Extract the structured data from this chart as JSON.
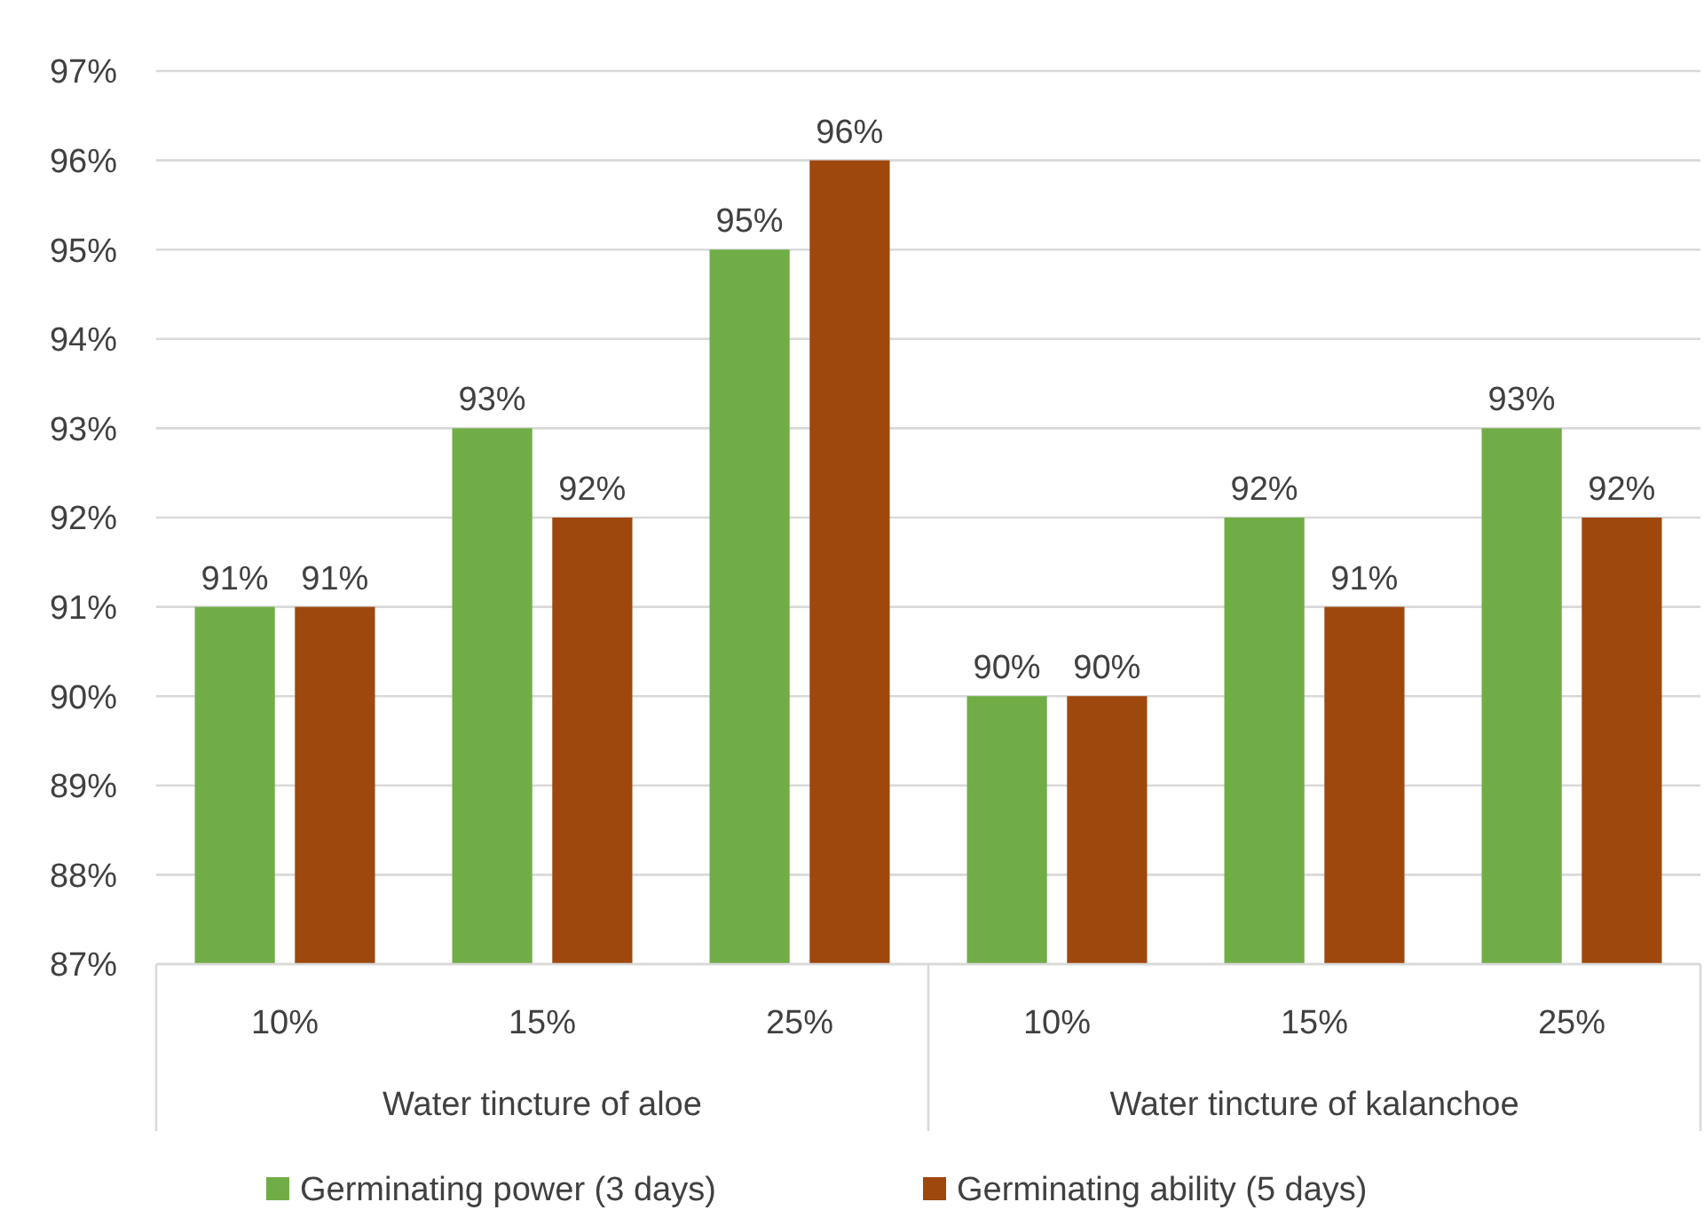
{
  "chart_data": {
    "type": "bar",
    "categories": [
      "10%",
      "15%",
      "25%",
      "10%",
      "15%",
      "25%"
    ],
    "annotations": [
      "Water tincture of aloe",
      "Water tincture of kalanchoe"
    ],
    "series": [
      {
        "name": "Germinating power (3 days)",
        "color": "#70ad47",
        "values": [
          91,
          93,
          95,
          90,
          92,
          93
        ],
        "value_labels": [
          "91%",
          "93%",
          "95%",
          "90%",
          "92%",
          "93%"
        ]
      },
      {
        "name": "Germinating ability (5 days)",
        "color": "#9e480e",
        "values": [
          91,
          92,
          96,
          90,
          91,
          92
        ],
        "value_labels": [
          "91%",
          "92%",
          "96%",
          "90%",
          "91%",
          "92%"
        ]
      }
    ],
    "ylim": [
      87,
      97
    ],
    "yticks": [
      {
        "value": 87,
        "label": "87%"
      },
      {
        "value": 88,
        "label": "88%"
      },
      {
        "value": 89,
        "label": "89%"
      },
      {
        "value": 90,
        "label": "90%"
      },
      {
        "value": 91,
        "label": "91%"
      },
      {
        "value": 92,
        "label": "92%"
      },
      {
        "value": 93,
        "label": "93%"
      },
      {
        "value": 94,
        "label": "94%"
      },
      {
        "value": 95,
        "label": "95%"
      },
      {
        "value": 96,
        "label": "96%"
      },
      {
        "value": 97,
        "label": "97%"
      }
    ],
    "grid": "y",
    "legend": "bottom"
  }
}
